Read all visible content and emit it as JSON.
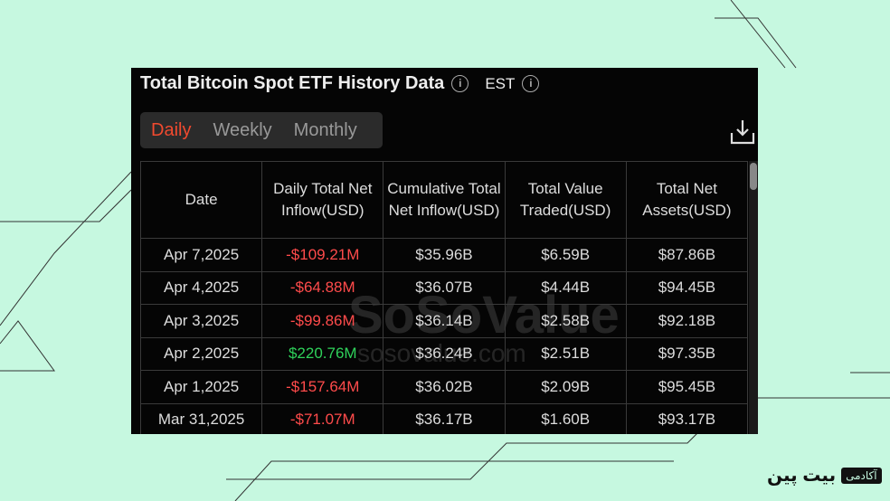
{
  "header": {
    "title": "Total Bitcoin Spot ETF History Data",
    "timezone": "EST"
  },
  "tabs": [
    "Daily",
    "Weekly",
    "Monthly"
  ],
  "table": {
    "columns": [
      "Date",
      "Daily Total Net Inflow(USD)",
      "Cumulative Total Net Inflow(USD)",
      "Total Value Traded(USD)",
      "Total Net Assets(USD)"
    ],
    "rows": [
      [
        "Apr 7,2025",
        "-$109.21M",
        "$35.96B",
        "$6.59B",
        "$87.86B"
      ],
      [
        "Apr 4,2025",
        "-$64.88M",
        "$36.07B",
        "$4.44B",
        "$94.45B"
      ],
      [
        "Apr 3,2025",
        "-$99.86M",
        "$36.14B",
        "$2.58B",
        "$92.18B"
      ],
      [
        "Apr 2,2025",
        "$220.76M",
        "$36.24B",
        "$2.51B",
        "$97.35B"
      ],
      [
        "Apr 1,2025",
        "-$157.64M",
        "$36.02B",
        "$2.09B",
        "$95.45B"
      ],
      [
        "Mar 31,2025",
        "-$71.07M",
        "$36.17B",
        "$1.60B",
        "$93.17B"
      ]
    ]
  },
  "watermark": {
    "brand": "SoSoValue",
    "site": "sosovalue.com"
  },
  "footer_logo": {
    "name": "بیت پین",
    "tag": "آکادمی"
  }
}
